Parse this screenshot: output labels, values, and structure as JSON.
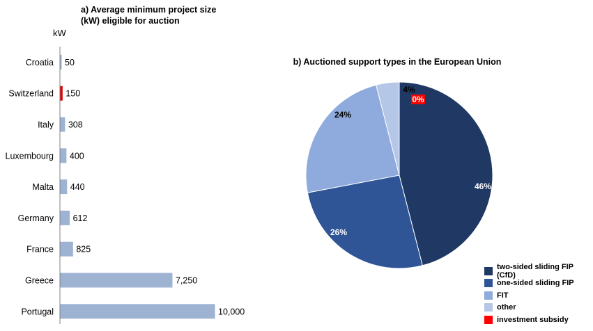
{
  "chart_data": [
    {
      "type": "bar",
      "orientation": "horizontal",
      "title": "a) Average minimum project size (kW) eligible for auction",
      "unit_label": "kW",
      "categories": [
        "Croatia",
        "Switzerland",
        "Italy",
        "Luxembourg",
        "Malta",
        "Germany",
        "France",
        "Greece",
        "Portugal"
      ],
      "values": [
        50,
        150,
        308,
        400,
        440,
        612,
        825,
        7250,
        10000
      ],
      "value_labels": [
        "50",
        "150",
        "308",
        "400",
        "440",
        "612",
        "825",
        "7,250",
        "10,000"
      ],
      "colors": [
        "#9eb2d2",
        "#e00000",
        "#9eb2d2",
        "#9eb2d2",
        "#9eb2d2",
        "#9eb2d2",
        "#9eb2d2",
        "#9eb2d2",
        "#9eb2d2"
      ],
      "xlim": [
        0,
        10000
      ],
      "grid": false
    },
    {
      "type": "pie",
      "title": "b) Auctioned support types in the European Union",
      "slices": [
        {
          "name": "two-sided sliding FIP (CfD)",
          "value": 46,
          "label": "46%",
          "color": "#1f3864"
        },
        {
          "name": "one-sided sliding FIP",
          "value": 26,
          "label": "26%",
          "color": "#2f5597"
        },
        {
          "name": "FIT",
          "value": 24,
          "label": "24%",
          "color": "#8faadc"
        },
        {
          "name": "other",
          "value": 4,
          "label": "4%",
          "color": "#b4c7e7"
        },
        {
          "name": "investment subsidy",
          "value": 0,
          "label": "0%",
          "color": "#ff0000"
        }
      ],
      "legend_position": "bottom-right"
    }
  ]
}
